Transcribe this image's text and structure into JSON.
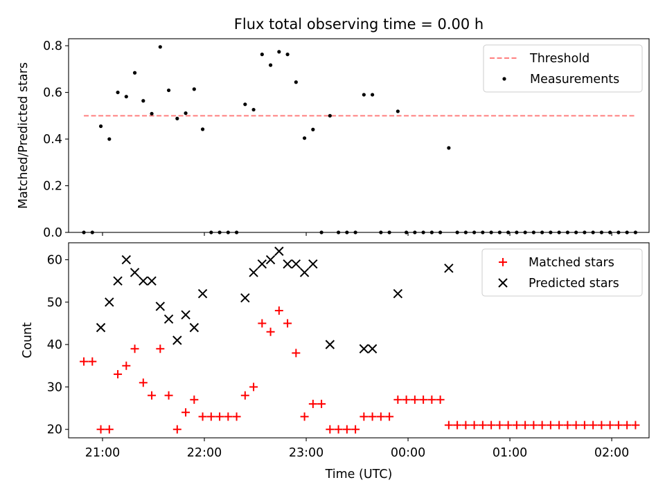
{
  "chart_data": {
    "title": "Flux total observing time = 0.00 h",
    "x_ticks": [
      "21:00",
      "22:00",
      "23:00",
      "00:00",
      "01:00",
      "02:00"
    ],
    "xlabel": "Time (UTC)",
    "top": {
      "type": "scatter",
      "ylabel": "Matched/Predicted stars",
      "ylim": [
        0,
        0.83
      ],
      "y_ticks": [
        "0.0",
        "0.2",
        "0.4",
        "0.6",
        "0.8"
      ],
      "legend_placement": "top-right",
      "threshold": {
        "name": "Threshold",
        "value": 0.5,
        "color": "#ff7f7f",
        "style": "dashed"
      },
      "measurements": {
        "name": "Measurements",
        "color": "#000000",
        "points": [
          [
            "20:49",
            0.0
          ],
          [
            "20:54",
            0.0
          ],
          [
            "20:59",
            0.455
          ],
          [
            "21:04",
            0.4
          ],
          [
            "21:09",
            0.6
          ],
          [
            "21:14",
            0.582
          ],
          [
            "21:19",
            0.684
          ],
          [
            "21:24",
            0.564
          ],
          [
            "21:29",
            0.509
          ],
          [
            "21:34",
            0.795
          ],
          [
            "21:39",
            0.609
          ],
          [
            "21:44",
            0.488
          ],
          [
            "21:49",
            0.511
          ],
          [
            "21:54",
            0.614
          ],
          [
            "21:59",
            0.442
          ],
          [
            "22:04",
            0.0
          ],
          [
            "22:09",
            0.0
          ],
          [
            "22:14",
            0.0
          ],
          [
            "22:19",
            0.0
          ],
          [
            "22:24",
            0.549
          ],
          [
            "22:29",
            0.526
          ],
          [
            "22:34",
            0.763
          ],
          [
            "22:39",
            0.717
          ],
          [
            "22:44",
            0.774
          ],
          [
            "22:49",
            0.763
          ],
          [
            "22:54",
            0.644
          ],
          [
            "22:59",
            0.404
          ],
          [
            "23:04",
            0.441
          ],
          [
            "23:09",
            0.0
          ],
          [
            "23:14",
            0.5
          ],
          [
            "23:19",
            0.0
          ],
          [
            "23:24",
            0.0
          ],
          [
            "23:29",
            0.0
          ],
          [
            "23:34",
            0.59
          ],
          [
            "23:39",
            0.59
          ],
          [
            "23:44",
            0.0
          ],
          [
            "23:49",
            0.0
          ],
          [
            "23:54",
            0.519
          ],
          [
            "23:59",
            0.0
          ],
          [
            "00:04",
            0.0
          ],
          [
            "00:09",
            0.0
          ],
          [
            "00:14",
            0.0
          ],
          [
            "00:19",
            0.0
          ],
          [
            "00:24",
            0.362
          ],
          [
            "00:29",
            0.0
          ],
          [
            "00:34",
            0.0
          ],
          [
            "00:39",
            0.0
          ],
          [
            "00:44",
            0.0
          ],
          [
            "00:49",
            0.0
          ],
          [
            "00:54",
            0.0
          ],
          [
            "00:59",
            0.0
          ],
          [
            "01:04",
            0.0
          ],
          [
            "01:09",
            0.0
          ],
          [
            "01:14",
            0.0
          ],
          [
            "01:19",
            0.0
          ],
          [
            "01:24",
            0.0
          ],
          [
            "01:29",
            0.0
          ],
          [
            "01:34",
            0.0
          ],
          [
            "01:39",
            0.0
          ],
          [
            "01:44",
            0.0
          ],
          [
            "01:49",
            0.0
          ],
          [
            "01:54",
            0.0
          ],
          [
            "01:59",
            0.0
          ],
          [
            "02:04",
            0.0
          ],
          [
            "02:09",
            0.0
          ],
          [
            "02:14",
            0.0
          ]
        ]
      }
    },
    "bottom": {
      "type": "scatter",
      "ylabel": "Count",
      "ylim": [
        18,
        64
      ],
      "y_ticks": [
        "20",
        "30",
        "40",
        "50",
        "60"
      ],
      "legend_placement": "top-right",
      "matched": {
        "name": "Matched stars",
        "color": "#ff0000",
        "marker": "+",
        "points": [
          [
            "20:49",
            36
          ],
          [
            "20:54",
            36
          ],
          [
            "20:59",
            20
          ],
          [
            "21:04",
            20
          ],
          [
            "21:09",
            33
          ],
          [
            "21:14",
            35
          ],
          [
            "21:19",
            39
          ],
          [
            "21:24",
            31
          ],
          [
            "21:29",
            28
          ],
          [
            "21:34",
            39
          ],
          [
            "21:39",
            28
          ],
          [
            "21:44",
            20
          ],
          [
            "21:49",
            24
          ],
          [
            "21:54",
            27
          ],
          [
            "21:59",
            23
          ],
          [
            "22:04",
            23
          ],
          [
            "22:09",
            23
          ],
          [
            "22:14",
            23
          ],
          [
            "22:19",
            23
          ],
          [
            "22:24",
            28
          ],
          [
            "22:29",
            30
          ],
          [
            "22:34",
            45
          ],
          [
            "22:39",
            43
          ],
          [
            "22:44",
            48
          ],
          [
            "22:49",
            45
          ],
          [
            "22:54",
            38
          ],
          [
            "22:59",
            23
          ],
          [
            "23:04",
            26
          ],
          [
            "23:09",
            26
          ],
          [
            "23:14",
            20
          ],
          [
            "23:19",
            20
          ],
          [
            "23:24",
            20
          ],
          [
            "23:29",
            20
          ],
          [
            "23:34",
            23
          ],
          [
            "23:39",
            23
          ],
          [
            "23:44",
            23
          ],
          [
            "23:49",
            23
          ],
          [
            "23:54",
            27
          ],
          [
            "23:59",
            27
          ],
          [
            "00:04",
            27
          ],
          [
            "00:09",
            27
          ],
          [
            "00:14",
            27
          ],
          [
            "00:19",
            27
          ],
          [
            "00:24",
            21
          ],
          [
            "00:29",
            21
          ],
          [
            "00:34",
            21
          ],
          [
            "00:39",
            21
          ],
          [
            "00:44",
            21
          ],
          [
            "00:49",
            21
          ],
          [
            "00:54",
            21
          ],
          [
            "00:59",
            21
          ],
          [
            "01:04",
            21
          ],
          [
            "01:09",
            21
          ],
          [
            "01:14",
            21
          ],
          [
            "01:19",
            21
          ],
          [
            "01:24",
            21
          ],
          [
            "01:29",
            21
          ],
          [
            "01:34",
            21
          ],
          [
            "01:39",
            21
          ],
          [
            "01:44",
            21
          ],
          [
            "01:49",
            21
          ],
          [
            "01:54",
            21
          ],
          [
            "01:59",
            21
          ],
          [
            "02:04",
            21
          ],
          [
            "02:09",
            21
          ],
          [
            "02:14",
            21
          ]
        ]
      },
      "predicted": {
        "name": "Predicted stars",
        "color": "#000000",
        "marker": "x",
        "points": [
          [
            "20:59",
            44
          ],
          [
            "21:04",
            50
          ],
          [
            "21:09",
            55
          ],
          [
            "21:14",
            60
          ],
          [
            "21:19",
            57
          ],
          [
            "21:24",
            55
          ],
          [
            "21:29",
            55
          ],
          [
            "21:34",
            49
          ],
          [
            "21:39",
            46
          ],
          [
            "21:44",
            41
          ],
          [
            "21:49",
            47
          ],
          [
            "21:54",
            44
          ],
          [
            "21:59",
            52
          ],
          [
            "22:24",
            51
          ],
          [
            "22:29",
            57
          ],
          [
            "22:34",
            59
          ],
          [
            "22:39",
            60
          ],
          [
            "22:44",
            62
          ],
          [
            "22:49",
            59
          ],
          [
            "22:54",
            59
          ],
          [
            "22:59",
            57
          ],
          [
            "23:04",
            59
          ],
          [
            "23:14",
            40
          ],
          [
            "23:34",
            39
          ],
          [
            "23:39",
            39
          ],
          [
            "23:54",
            52
          ],
          [
            "00:24",
            58
          ]
        ]
      }
    }
  }
}
